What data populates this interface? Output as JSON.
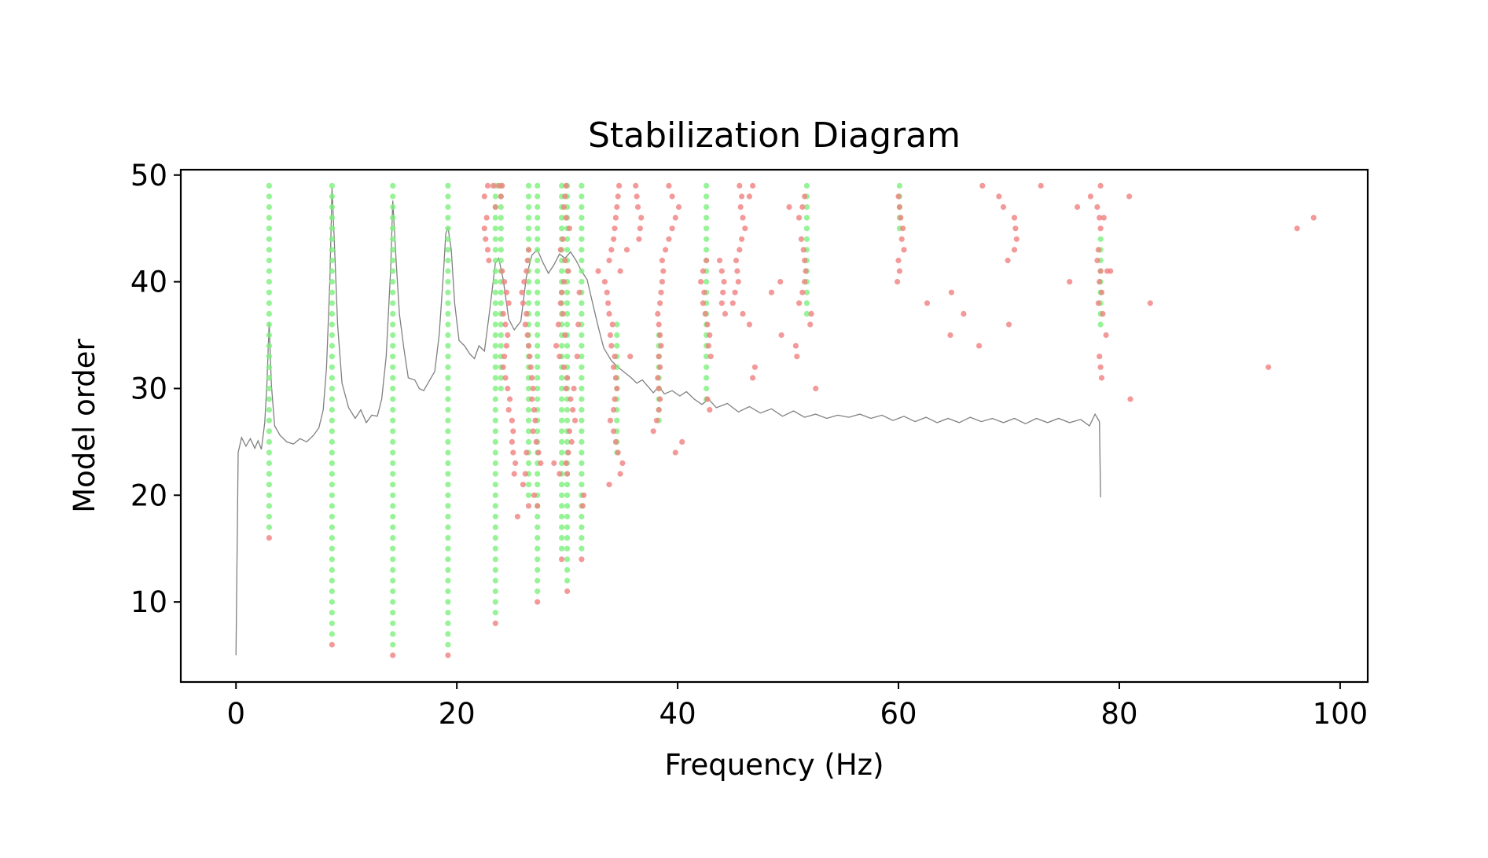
{
  "chart_data": {
    "type": "scatter",
    "title": "Stabilization Diagram",
    "xlabel": "Frequency (Hz)",
    "ylabel": "Model order",
    "xlim": [
      -5,
      102.5
    ],
    "ylim": [
      2.5,
      50.5
    ],
    "xticks": [
      0,
      20,
      40,
      60,
      80,
      100
    ],
    "yticks": [
      10,
      20,
      30,
      40,
      50
    ],
    "grid": false,
    "legend": "none",
    "colors": {
      "stable": "#7cf07c",
      "unstable": "#f08080",
      "spectrum": "#808080",
      "frame": "#000000"
    },
    "stable_columns": [
      {
        "x": 3.0,
        "from": 17,
        "to": 49
      },
      {
        "x": 8.7,
        "from": 7,
        "to": 49
      },
      {
        "x": 14.2,
        "from": 6,
        "to": 49
      },
      {
        "x": 19.2,
        "from": 6,
        "to": 49
      },
      {
        "x": 23.5,
        "from": 9,
        "to": 49
      },
      {
        "x": 24.0,
        "from": 30,
        "to": 49
      },
      {
        "x": 26.5,
        "from": 20,
        "to": 49
      },
      {
        "x": 27.3,
        "from": 11,
        "to": 49
      },
      {
        "x": 29.5,
        "from": 15,
        "to": 49
      },
      {
        "x": 30.0,
        "from": 12,
        "to": 49
      },
      {
        "x": 31.3,
        "from": 15,
        "to": 49
      },
      {
        "x": 34.5,
        "from": 24,
        "to": 36
      },
      {
        "x": 38.3,
        "from": 27,
        "to": 35
      },
      {
        "x": 42.6,
        "from": 29,
        "to": 49
      },
      {
        "x": 51.7,
        "from": 37,
        "to": 49
      },
      {
        "x": 60.1,
        "from": 45,
        "to": 49
      },
      {
        "x": 78.3,
        "from": 36,
        "to": 44
      }
    ],
    "unstable_points": [
      [
        3.0,
        16
      ],
      [
        8.7,
        6
      ],
      [
        14.2,
        5
      ],
      [
        19.2,
        5
      ],
      [
        23.5,
        8
      ],
      [
        27.3,
        10
      ],
      [
        30.0,
        11
      ],
      [
        29.5,
        14
      ],
      [
        31.3,
        14
      ],
      [
        26.5,
        19
      ],
      [
        25.5,
        18
      ],
      [
        27.0,
        20
      ],
      [
        27.3,
        19
      ],
      [
        28.8,
        23
      ],
      [
        29.3,
        22
      ],
      [
        33.8,
        21
      ],
      [
        34.8,
        22
      ],
      [
        35.0,
        23
      ],
      [
        34.6,
        24
      ],
      [
        22.5,
        48
      ],
      [
        22.8,
        49
      ],
      [
        23.3,
        49
      ],
      [
        23.8,
        49
      ],
      [
        24.1,
        49
      ],
      [
        23.5,
        47
      ],
      [
        24.0,
        48
      ],
      [
        22.7,
        46
      ],
      [
        22.5,
        45
      ],
      [
        22.6,
        44
      ],
      [
        22.8,
        43
      ],
      [
        22.9,
        42
      ],
      [
        24.1,
        41
      ],
      [
        24.3,
        40
      ],
      [
        24.5,
        39
      ],
      [
        24.7,
        38
      ],
      [
        24.2,
        37
      ],
      [
        24.4,
        36
      ],
      [
        24.6,
        35
      ],
      [
        24.5,
        34
      ],
      [
        24.3,
        33
      ],
      [
        24.2,
        32
      ],
      [
        24.4,
        31
      ],
      [
        24.6,
        30
      ],
      [
        24.8,
        29
      ],
      [
        24.7,
        28
      ],
      [
        25.0,
        27
      ],
      [
        25.1,
        26
      ],
      [
        25.0,
        25
      ],
      [
        25.1,
        24
      ],
      [
        25.3,
        23
      ],
      [
        25.2,
        22
      ],
      [
        26.0,
        21
      ],
      [
        26.2,
        22
      ],
      [
        26.3,
        24
      ],
      [
        26.5,
        43
      ],
      [
        26.4,
        42
      ],
      [
        26.3,
        41
      ],
      [
        26.1,
        40
      ],
      [
        25.9,
        39
      ],
      [
        26.0,
        38
      ],
      [
        26.3,
        37
      ],
      [
        26.2,
        36
      ],
      [
        26.4,
        35
      ],
      [
        26.5,
        34
      ],
      [
        26.6,
        33
      ],
      [
        26.7,
        32
      ],
      [
        26.8,
        31
      ],
      [
        26.9,
        30
      ],
      [
        26.8,
        29
      ],
      [
        27.0,
        28
      ],
      [
        27.1,
        27
      ],
      [
        26.9,
        26
      ],
      [
        27.2,
        25
      ],
      [
        27.4,
        24
      ],
      [
        27.6,
        23
      ],
      [
        29.9,
        49
      ],
      [
        29.8,
        48
      ],
      [
        29.7,
        47
      ],
      [
        29.9,
        46
      ],
      [
        30.2,
        45
      ],
      [
        29.6,
        44
      ],
      [
        29.4,
        43
      ],
      [
        29.8,
        42
      ],
      [
        30.1,
        41
      ],
      [
        29.7,
        40
      ],
      [
        29.5,
        39
      ],
      [
        29.4,
        38
      ],
      [
        29.6,
        37
      ],
      [
        29.2,
        36
      ],
      [
        29.8,
        35
      ],
      [
        29.0,
        34
      ],
      [
        29.3,
        33
      ],
      [
        29.7,
        32
      ],
      [
        30.0,
        31
      ],
      [
        29.9,
        30
      ],
      [
        30.3,
        29
      ],
      [
        30.5,
        28
      ],
      [
        30.7,
        27
      ],
      [
        30.2,
        26
      ],
      [
        30.4,
        25
      ],
      [
        30.1,
        24
      ],
      [
        29.9,
        23
      ],
      [
        30.0,
        22
      ],
      [
        30.6,
        30
      ],
      [
        30.9,
        33
      ],
      [
        31.0,
        36
      ],
      [
        31.1,
        39
      ],
      [
        31.5,
        20
      ],
      [
        31.4,
        19
      ],
      [
        32.8,
        41
      ],
      [
        33.4,
        40
      ],
      [
        33.6,
        39
      ],
      [
        33.7,
        38
      ],
      [
        33.8,
        37
      ],
      [
        34.1,
        36
      ],
      [
        33.9,
        35
      ],
      [
        34.0,
        34
      ],
      [
        34.3,
        33
      ],
      [
        34.2,
        32
      ],
      [
        34.4,
        31
      ],
      [
        34.5,
        30
      ],
      [
        34.3,
        29
      ],
      [
        34.2,
        28
      ],
      [
        33.9,
        27
      ],
      [
        34.2,
        26
      ],
      [
        34.4,
        25
      ],
      [
        33.8,
        42
      ],
      [
        34.0,
        43
      ],
      [
        34.2,
        44
      ],
      [
        34.3,
        45
      ],
      [
        34.4,
        46
      ],
      [
        34.5,
        47
      ],
      [
        34.6,
        48
      ],
      [
        34.7,
        49
      ],
      [
        35.4,
        43
      ],
      [
        35.7,
        33
      ],
      [
        34.8,
        41
      ],
      [
        36.5,
        44
      ],
      [
        36.6,
        45
      ],
      [
        36.7,
        46
      ],
      [
        36.4,
        47
      ],
      [
        36.3,
        48
      ],
      [
        36.2,
        49
      ],
      [
        37.8,
        26
      ],
      [
        38.1,
        27
      ],
      [
        38.3,
        28
      ],
      [
        38.4,
        29
      ],
      [
        38.3,
        30
      ],
      [
        38.2,
        31
      ],
      [
        38.4,
        32
      ],
      [
        38.3,
        33
      ],
      [
        38.5,
        34
      ],
      [
        38.4,
        35
      ],
      [
        38.3,
        36
      ],
      [
        38.2,
        37
      ],
      [
        38.4,
        38
      ],
      [
        38.5,
        39
      ],
      [
        38.6,
        40
      ],
      [
        38.7,
        41
      ],
      [
        38.6,
        42
      ],
      [
        38.9,
        43
      ],
      [
        39.2,
        44
      ],
      [
        39.5,
        45
      ],
      [
        39.8,
        46
      ],
      [
        40.1,
        47
      ],
      [
        39.5,
        48
      ],
      [
        39.2,
        49
      ],
      [
        39.8,
        24
      ],
      [
        40.4,
        25
      ],
      [
        42.6,
        42
      ],
      [
        42.3,
        41
      ],
      [
        42.1,
        40
      ],
      [
        42.4,
        39
      ],
      [
        42.3,
        38
      ],
      [
        42.5,
        37
      ],
      [
        42.7,
        36
      ],
      [
        42.9,
        35
      ],
      [
        42.8,
        34
      ],
      [
        43.0,
        33
      ],
      [
        42.9,
        28
      ],
      [
        42.7,
        29
      ],
      [
        43.8,
        42
      ],
      [
        44.0,
        41
      ],
      [
        44.2,
        40
      ],
      [
        44.1,
        39
      ],
      [
        44.0,
        38
      ],
      [
        44.3,
        37
      ],
      [
        45.0,
        38
      ],
      [
        45.2,
        39
      ],
      [
        45.5,
        40
      ],
      [
        45.4,
        41
      ],
      [
        45.3,
        42
      ],
      [
        45.6,
        43
      ],
      [
        45.8,
        44
      ],
      [
        46.1,
        45
      ],
      [
        45.9,
        46
      ],
      [
        45.7,
        47
      ],
      [
        45.8,
        48
      ],
      [
        45.6,
        49
      ],
      [
        45.9,
        37
      ],
      [
        46.5,
        36
      ],
      [
        46.8,
        31
      ],
      [
        47.0,
        32
      ],
      [
        46.8,
        49
      ],
      [
        46.5,
        48
      ],
      [
        48.5,
        39
      ],
      [
        49.3,
        40
      ],
      [
        49.4,
        35
      ],
      [
        50.1,
        47
      ],
      [
        50.7,
        34
      ],
      [
        50.8,
        33
      ],
      [
        51.0,
        38
      ],
      [
        51.3,
        39
      ],
      [
        51.5,
        40
      ],
      [
        51.6,
        41
      ],
      [
        51.5,
        42
      ],
      [
        51.4,
        43
      ],
      [
        51.2,
        44
      ],
      [
        51.0,
        46
      ],
      [
        51.3,
        47
      ],
      [
        51.5,
        48
      ],
      [
        52.0,
        36
      ],
      [
        52.1,
        37
      ],
      [
        52.5,
        30
      ],
      [
        59.9,
        40
      ],
      [
        60.1,
        41
      ],
      [
        60.0,
        42
      ],
      [
        60.3,
        44
      ],
      [
        60.5,
        43
      ],
      [
        60.4,
        45
      ],
      [
        60.2,
        46
      ],
      [
        60.1,
        47
      ],
      [
        60.0,
        48
      ],
      [
        62.6,
        38
      ],
      [
        64.8,
        39
      ],
      [
        64.7,
        35
      ],
      [
        65.9,
        37
      ],
      [
        67.3,
        34
      ],
      [
        67.6,
        49
      ],
      [
        69.1,
        48
      ],
      [
        69.5,
        47
      ],
      [
        70.0,
        36
      ],
      [
        69.9,
        42
      ],
      [
        70.5,
        46
      ],
      [
        70.6,
        45
      ],
      [
        70.7,
        44
      ],
      [
        70.5,
        43
      ],
      [
        72.9,
        49
      ],
      [
        75.5,
        40
      ],
      [
        76.2,
        47
      ],
      [
        77.4,
        48
      ],
      [
        78.0,
        47
      ],
      [
        78.2,
        46
      ],
      [
        78.3,
        45
      ],
      [
        78.1,
        43
      ],
      [
        78.0,
        42
      ],
      [
        78.3,
        41
      ],
      [
        78.2,
        40
      ],
      [
        78.4,
        39
      ],
      [
        78.1,
        38
      ],
      [
        78.5,
        37
      ],
      [
        78.2,
        33
      ],
      [
        78.3,
        32
      ],
      [
        78.4,
        31
      ],
      [
        78.8,
        35
      ],
      [
        78.3,
        49
      ],
      [
        78.6,
        46
      ],
      [
        78.9,
        41
      ],
      [
        79.2,
        41
      ],
      [
        80.9,
        48
      ],
      [
        81.0,
        29
      ],
      [
        82.8,
        38
      ],
      [
        93.5,
        32
      ],
      [
        96.1,
        45
      ],
      [
        97.6,
        46
      ]
    ],
    "spectrum": [
      [
        0,
        5
      ],
      [
        0.2,
        24
      ],
      [
        0.5,
        25.4
      ],
      [
        0.9,
        24.6
      ],
      [
        1.3,
        25.3
      ],
      [
        1.7,
        24.4
      ],
      [
        2.0,
        25.1
      ],
      [
        2.3,
        24.3
      ],
      [
        2.6,
        26.8
      ],
      [
        2.8,
        30.5
      ],
      [
        3.0,
        36.2
      ],
      [
        3.2,
        30.4
      ],
      [
        3.5,
        26.5
      ],
      [
        4.0,
        25.6
      ],
      [
        4.6,
        25.0
      ],
      [
        5.2,
        24.8
      ],
      [
        5.8,
        25.3
      ],
      [
        6.4,
        25.0
      ],
      [
        7.0,
        25.6
      ],
      [
        7.5,
        26.3
      ],
      [
        7.9,
        28.0
      ],
      [
        8.2,
        32.0
      ],
      [
        8.5,
        40.0
      ],
      [
        8.7,
        48.8
      ],
      [
        8.9,
        44.0
      ],
      [
        9.2,
        36.0
      ],
      [
        9.6,
        30.5
      ],
      [
        10.2,
        28.2
      ],
      [
        10.8,
        27.2
      ],
      [
        11.3,
        28.0
      ],
      [
        11.8,
        26.8
      ],
      [
        12.3,
        27.5
      ],
      [
        12.8,
        27.4
      ],
      [
        13.2,
        29.0
      ],
      [
        13.6,
        33.0
      ],
      [
        14.0,
        41.0
      ],
      [
        14.2,
        47.6
      ],
      [
        14.5,
        42.0
      ],
      [
        14.8,
        37.0
      ],
      [
        15.2,
        33.8
      ],
      [
        15.6,
        31.0
      ],
      [
        16.2,
        30.8
      ],
      [
        16.6,
        30.0
      ],
      [
        17.0,
        29.8
      ],
      [
        17.5,
        30.7
      ],
      [
        18.0,
        31.6
      ],
      [
        18.4,
        35.0
      ],
      [
        18.8,
        41.0
      ],
      [
        19.0,
        44.5
      ],
      [
        19.2,
        45.1
      ],
      [
        19.5,
        43.0
      ],
      [
        19.8,
        38.0
      ],
      [
        20.2,
        34.5
      ],
      [
        20.7,
        34.0
      ],
      [
        21.2,
        33.2
      ],
      [
        21.6,
        32.8
      ],
      [
        22.0,
        34.0
      ],
      [
        22.5,
        33.5
      ],
      [
        23.0,
        37.5
      ],
      [
        23.5,
        41.8
      ],
      [
        23.8,
        42.2
      ],
      [
        24.2,
        40.2
      ],
      [
        24.7,
        36.5
      ],
      [
        25.2,
        35.5
      ],
      [
        25.8,
        36.3
      ],
      [
        26.3,
        40.5
      ],
      [
        26.8,
        42.5
      ],
      [
        27.3,
        43.0
      ],
      [
        27.8,
        41.8
      ],
      [
        28.3,
        40.8
      ],
      [
        28.8,
        41.6
      ],
      [
        29.3,
        42.6
      ],
      [
        29.8,
        42.2
      ],
      [
        30.3,
        42.8
      ],
      [
        30.8,
        42.0
      ],
      [
        31.3,
        41.0
      ],
      [
        31.8,
        40.2
      ],
      [
        32.3,
        38.0
      ],
      [
        32.8,
        35.8
      ],
      [
        33.3,
        33.8
      ],
      [
        34.0,
        32.6
      ],
      [
        34.6,
        32.0
      ],
      [
        35.2,
        31.5
      ],
      [
        35.8,
        31.0
      ],
      [
        36.3,
        30.5
      ],
      [
        36.8,
        30.8
      ],
      [
        37.3,
        30.2
      ],
      [
        37.8,
        29.6
      ],
      [
        38.3,
        30.2
      ],
      [
        38.8,
        29.5
      ],
      [
        39.5,
        29.8
      ],
      [
        40.2,
        29.3
      ],
      [
        40.8,
        29.7
      ],
      [
        41.5,
        29.0
      ],
      [
        42.2,
        28.5
      ],
      [
        42.8,
        29.0
      ],
      [
        43.5,
        28.2
      ],
      [
        44.5,
        28.6
      ],
      [
        45.5,
        27.8
      ],
      [
        46.5,
        28.3
      ],
      [
        47.5,
        27.7
      ],
      [
        48.5,
        28.1
      ],
      [
        49.5,
        27.4
      ],
      [
        50.5,
        27.9
      ],
      [
        51.5,
        27.3
      ],
      [
        52.5,
        27.6
      ],
      [
        53.5,
        27.2
      ],
      [
        54.5,
        27.5
      ],
      [
        55.5,
        27.3
      ],
      [
        56.5,
        27.6
      ],
      [
        57.5,
        27.2
      ],
      [
        58.5,
        27.5
      ],
      [
        59.5,
        27.0
      ],
      [
        60.5,
        27.4
      ],
      [
        61.5,
        26.9
      ],
      [
        62.5,
        27.3
      ],
      [
        63.5,
        26.8
      ],
      [
        64.5,
        27.2
      ],
      [
        65.5,
        26.8
      ],
      [
        66.5,
        27.3
      ],
      [
        67.5,
        26.9
      ],
      [
        68.5,
        27.2
      ],
      [
        69.5,
        26.8
      ],
      [
        70.5,
        27.2
      ],
      [
        71.5,
        26.7
      ],
      [
        72.5,
        27.2
      ],
      [
        73.5,
        26.8
      ],
      [
        74.5,
        27.2
      ],
      [
        75.5,
        26.8
      ],
      [
        76.5,
        27.1
      ],
      [
        77.3,
        26.5
      ],
      [
        77.8,
        27.6
      ],
      [
        78.2,
        26.9
      ],
      [
        78.3,
        19.8
      ]
    ]
  }
}
